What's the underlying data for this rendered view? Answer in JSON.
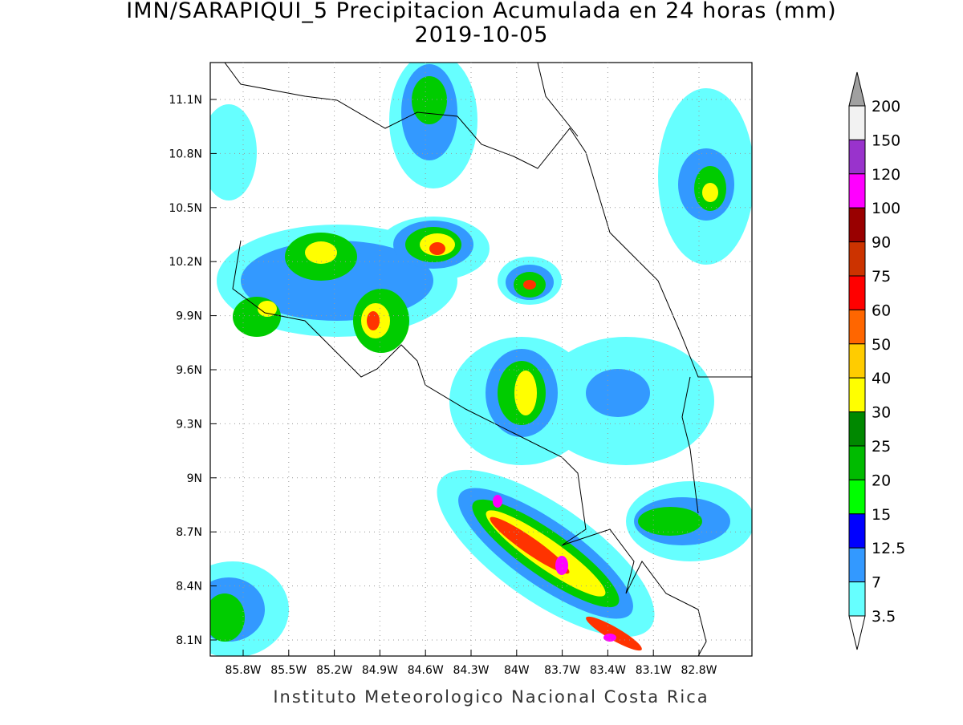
{
  "header": {
    "title": "IMN/SARAPIQUI_5 Precipitacion Acumulada en 24 horas (mm)",
    "date": "2019-10-05"
  },
  "map": {
    "lat_labels": [
      "11.1N",
      "10.8N",
      "10.5N",
      "10.2N",
      "9.9N",
      "9.6N",
      "9.3N",
      "9N",
      "8.7N",
      "8.4N",
      "8.1N"
    ],
    "lon_labels": [
      "85.8W",
      "85.5W",
      "85.2W",
      "84.9W",
      "84.6W",
      "84.3W",
      "84W",
      "83.7W",
      "83.4W",
      "83.1W",
      "82.8W"
    ]
  },
  "colorbar": {
    "levels": [
      "200",
      "150",
      "120",
      "100",
      "90",
      "75",
      "60",
      "50",
      "40",
      "30",
      "25",
      "20",
      "15",
      "12.5",
      "7",
      "3.5"
    ],
    "colors": [
      "#f2f2f2",
      "#9933cc",
      "#ff00ff",
      "#990000",
      "#cc3300",
      "#ff0000",
      "#ff6600",
      "#ffcc00",
      "#ffff00",
      "#008800",
      "#00bb00",
      "#00ff00",
      "#0000ff",
      "#3399ff",
      "#66ffff"
    ],
    "over_color": "#a0a0a0",
    "under_color": "#ffffff"
  },
  "footer": "Instituto Meteorologico Nacional Costa Rica"
}
